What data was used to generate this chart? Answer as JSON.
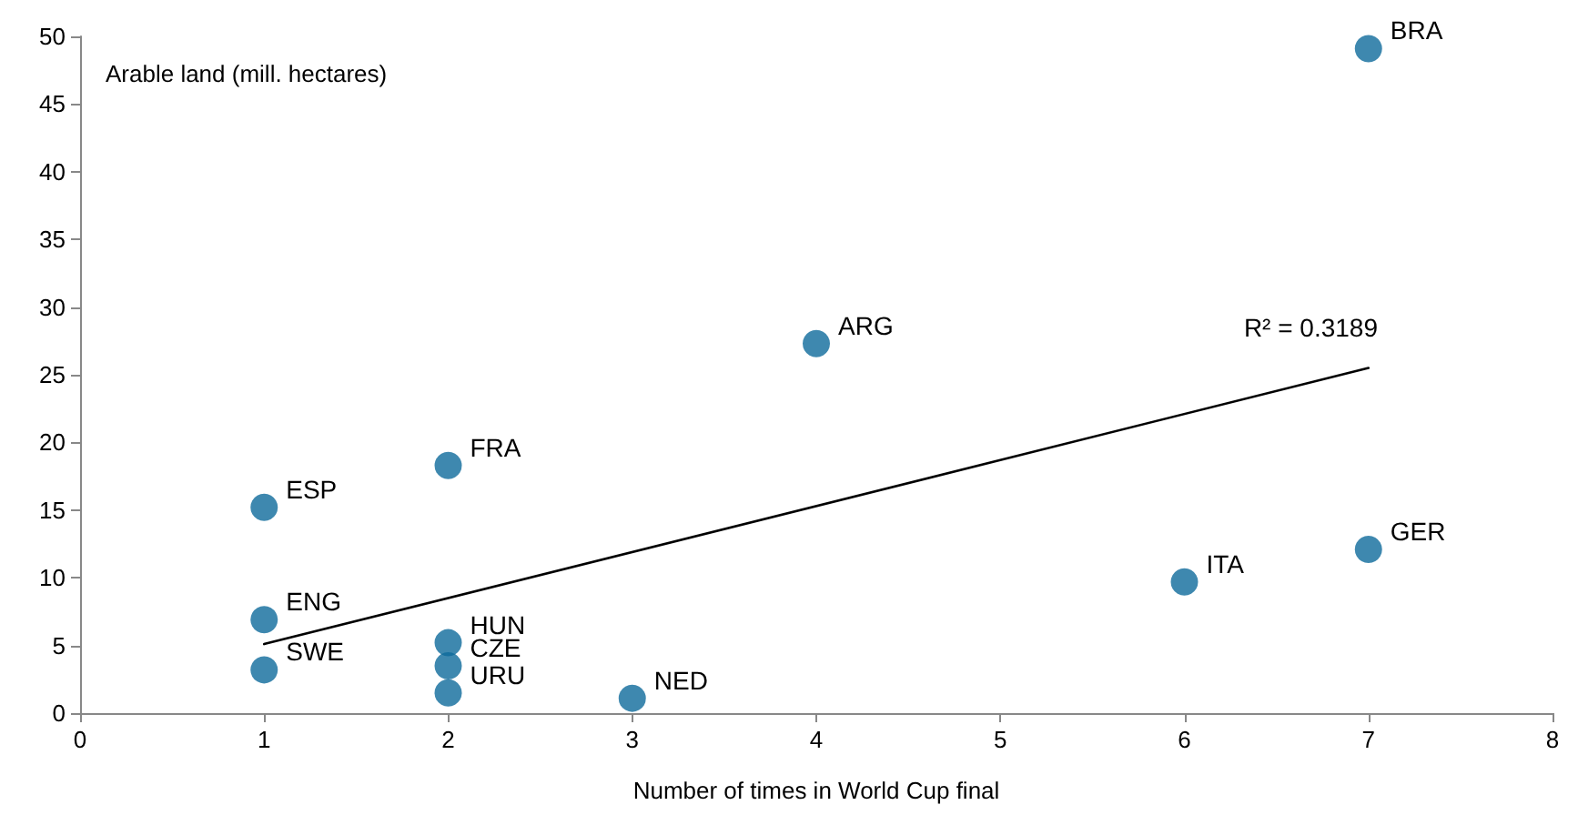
{
  "chart_data": {
    "type": "scatter",
    "xlabel": "Number of times in World Cup final",
    "ylabel": "Arable land (mill. hectares)",
    "xlim": [
      0,
      8
    ],
    "xticks": [
      0,
      1,
      2,
      3,
      4,
      5,
      6,
      7,
      8
    ],
    "ylim": [
      0,
      50
    ],
    "yticks": [
      0,
      5,
      10,
      15,
      20,
      25,
      30,
      35,
      40,
      45,
      50
    ],
    "grid": false,
    "marker": "circle",
    "series": [
      {
        "color": "#0e6a9b",
        "x": [
          1,
          1,
          1,
          2,
          2,
          2,
          2,
          3,
          4,
          6,
          7,
          7
        ],
        "values": [
          15.2,
          6.9,
          3.2,
          18.3,
          5.2,
          3.5,
          1.5,
          1.1,
          27.3,
          9.7,
          12.1,
          49.1
        ]
      },
      {
        "type": "line",
        "color": "#000000",
        "marker": "none",
        "line_style": "solid",
        "x": [
          1,
          7
        ],
        "values": [
          5.1,
          25.5
        ]
      }
    ],
    "annotations": [
      {
        "text": "ESP",
        "x": 1,
        "y": 15.2
      },
      {
        "text": "ENG",
        "x": 1,
        "y": 6.9
      },
      {
        "text": "SWE",
        "x": 1,
        "y": 3.2
      },
      {
        "text": "FRA",
        "x": 2,
        "y": 18.3
      },
      {
        "text": "HUN",
        "x": 2,
        "y": 5.2
      },
      {
        "text": "CZE",
        "x": 2,
        "y": 3.5
      },
      {
        "text": "URU",
        "x": 2,
        "y": 1.5
      },
      {
        "text": "NED",
        "x": 3,
        "y": 1.1
      },
      {
        "text": "ARG",
        "x": 4,
        "y": 27.3
      },
      {
        "text": "ITA",
        "x": 6,
        "y": 9.7
      },
      {
        "text": "GER",
        "x": 7,
        "y": 12.1
      },
      {
        "text": "BRA",
        "x": 7,
        "y": 49.1
      },
      "R² = 0.3189"
    ]
  }
}
